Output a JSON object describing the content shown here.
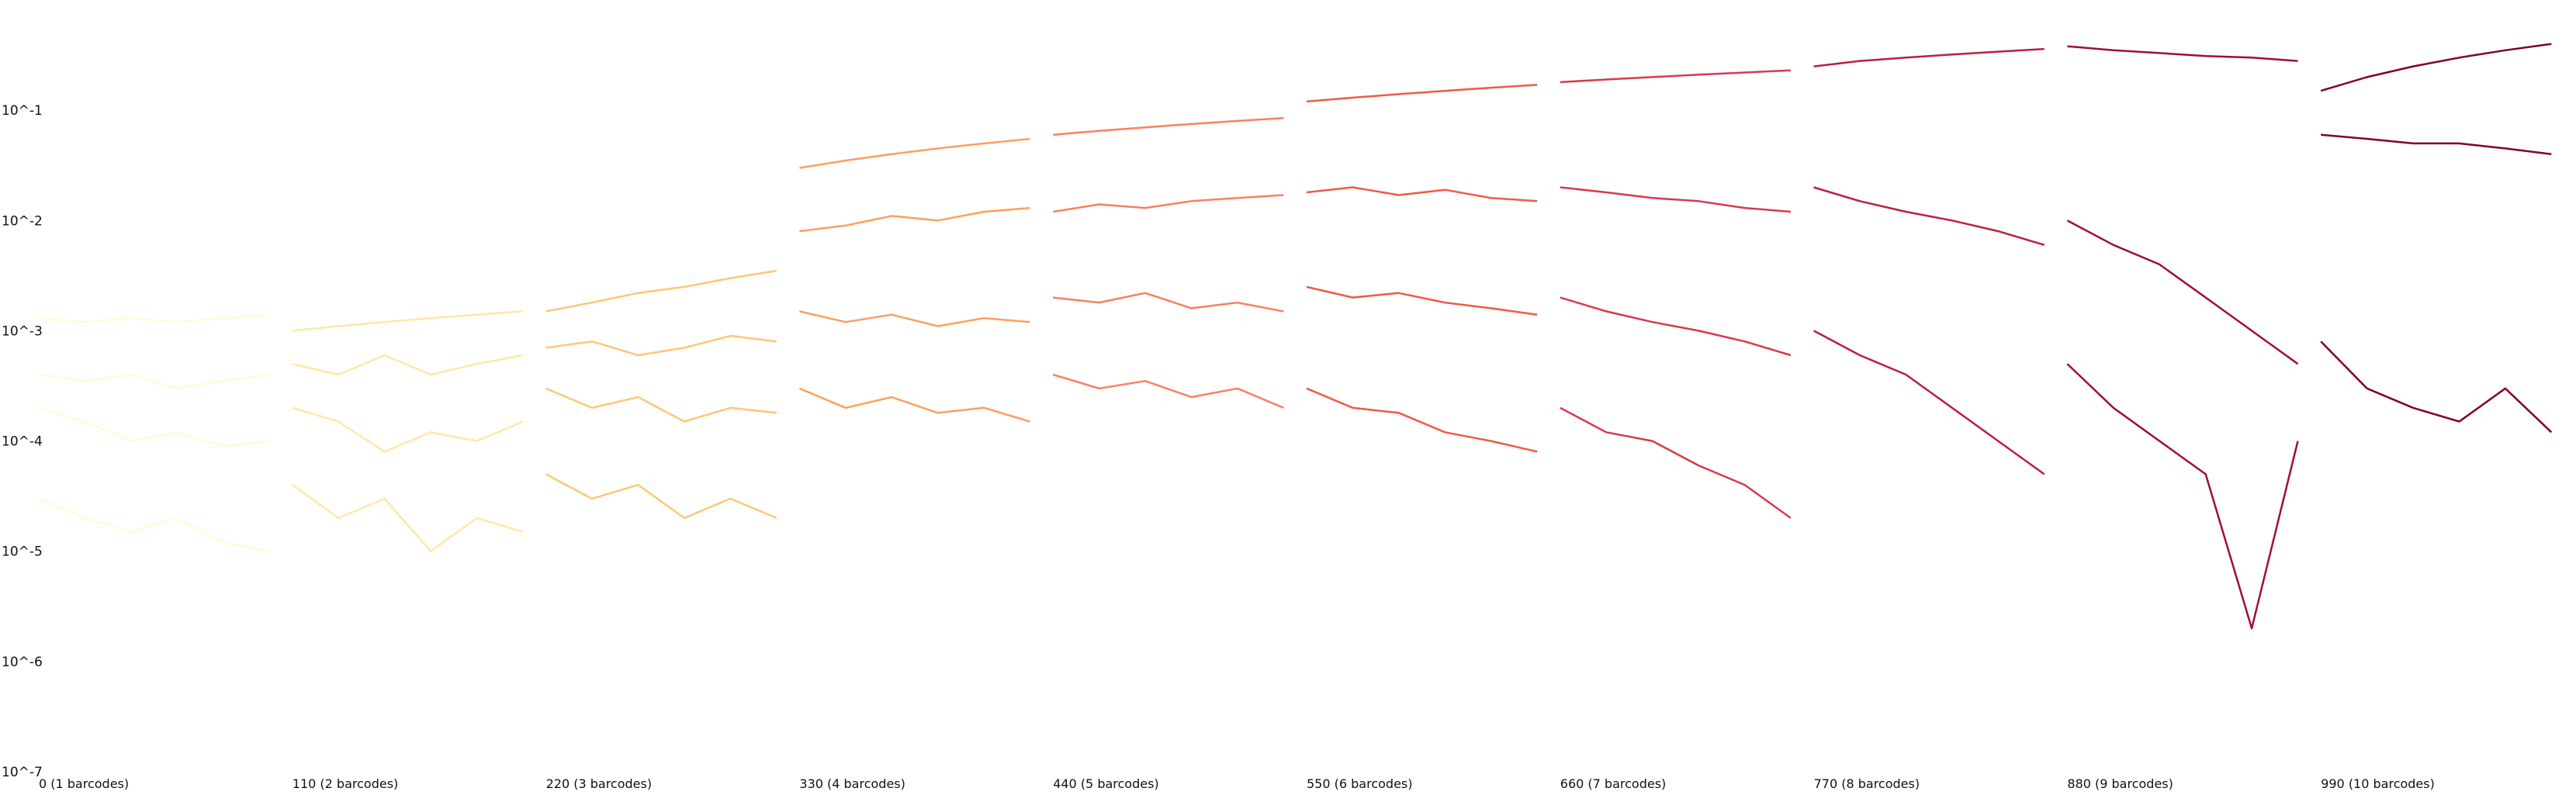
{
  "chart_data": {
    "type": "line",
    "title": "",
    "xlabel": "",
    "ylabel": "",
    "y_scale": "log",
    "ylim": [
      1e-07,
      1
    ],
    "xlim": [
      0,
      1100
    ],
    "grid": false,
    "legend": "none",
    "y_tick_labels": [
      "10^-1",
      "10^-2",
      "10^-3",
      "10^-4",
      "10^-5",
      "10^-6",
      "10^-7"
    ],
    "y_tick_values": [
      0.1,
      0.01,
      0.001,
      0.0001,
      1e-05,
      1e-06,
      1e-07
    ],
    "x_tick_labels": [
      "0 (1 barcodes)",
      "110 (2 barcodes)",
      "220 (3 barcodes)",
      "330 (4 barcodes)",
      "440 (5 barcodes)",
      "550 (6 barcodes)",
      "660 (7 barcodes)",
      "770 (8 barcodes)",
      "880 (9 barcodes)",
      "990 (10 barcodes)"
    ],
    "x_tick_values": [
      0,
      110,
      220,
      330,
      440,
      550,
      660,
      770,
      880,
      990
    ],
    "group_colors": [
      "#fffcd2",
      "#fee8a6",
      "#fec67a",
      "#fd9f5c",
      "#f98062",
      "#ee5a4a",
      "#d73a4d",
      "#bb1f3f",
      "#9e0f35",
      "#800026"
    ],
    "series": [
      {
        "group": 0,
        "x": [
          0,
          20,
          40,
          60,
          80,
          100
        ],
        "y": [
          0.0013,
          0.0012,
          0.0013,
          0.0012,
          0.0013,
          0.0014
        ]
      },
      {
        "group": 0,
        "x": [
          0,
          20,
          40,
          60,
          80,
          100
        ],
        "y": [
          0.0004,
          0.00035,
          0.0004,
          0.0003,
          0.00035,
          0.0004
        ]
      },
      {
        "group": 0,
        "x": [
          0,
          20,
          40,
          60,
          80,
          100
        ],
        "y": [
          0.0002,
          0.00015,
          0.0001,
          0.00012,
          9e-05,
          0.0001
        ]
      },
      {
        "group": 0,
        "x": [
          0,
          20,
          40,
          60,
          80,
          100
        ],
        "y": [
          3e-05,
          2e-05,
          1.5e-05,
          2e-05,
          1.2e-05,
          1e-05
        ]
      },
      {
        "group": 1,
        "x": [
          110,
          130,
          150,
          170,
          190,
          210
        ],
        "y": [
          0.001,
          0.0011,
          0.0012,
          0.0013,
          0.0014,
          0.0015
        ]
      },
      {
        "group": 1,
        "x": [
          110,
          130,
          150,
          170,
          190,
          210
        ],
        "y": [
          0.0005,
          0.0004,
          0.0006,
          0.0004,
          0.0005,
          0.0006
        ]
      },
      {
        "group": 1,
        "x": [
          110,
          130,
          150,
          170,
          190,
          210
        ],
        "y": [
          0.0002,
          0.00015,
          8e-05,
          0.00012,
          0.0001,
          0.00015
        ]
      },
      {
        "group": 1,
        "x": [
          110,
          130,
          150,
          170,
          190,
          210
        ],
        "y": [
          4e-05,
          2e-05,
          3e-05,
          1e-05,
          2e-05,
          1.5e-05
        ]
      },
      {
        "group": 2,
        "x": [
          220,
          240,
          260,
          280,
          300,
          320
        ],
        "y": [
          0.0015,
          0.0018,
          0.0022,
          0.0025,
          0.003,
          0.0035
        ]
      },
      {
        "group": 2,
        "x": [
          220,
          240,
          260,
          280,
          300,
          320
        ],
        "y": [
          0.0007,
          0.0008,
          0.0006,
          0.0007,
          0.0009,
          0.0008
        ]
      },
      {
        "group": 2,
        "x": [
          220,
          240,
          260,
          280,
          300,
          320
        ],
        "y": [
          0.0003,
          0.0002,
          0.00025,
          0.00015,
          0.0002,
          0.00018
        ]
      },
      {
        "group": 2,
        "x": [
          220,
          240,
          260,
          280,
          300,
          320
        ],
        "y": [
          5e-05,
          3e-05,
          4e-05,
          2e-05,
          3e-05,
          2e-05
        ]
      },
      {
        "group": 3,
        "x": [
          330,
          350,
          370,
          390,
          410,
          430
        ],
        "y": [
          0.03,
          0.035,
          0.04,
          0.045,
          0.05,
          0.055
        ]
      },
      {
        "group": 3,
        "x": [
          330,
          350,
          370,
          390,
          410,
          430
        ],
        "y": [
          0.008,
          0.009,
          0.011,
          0.01,
          0.012,
          0.013
        ]
      },
      {
        "group": 3,
        "x": [
          330,
          350,
          370,
          390,
          410,
          430
        ],
        "y": [
          0.0015,
          0.0012,
          0.0014,
          0.0011,
          0.0013,
          0.0012
        ]
      },
      {
        "group": 3,
        "x": [
          330,
          350,
          370,
          390,
          410,
          430
        ],
        "y": [
          0.0003,
          0.0002,
          0.00025,
          0.00018,
          0.0002,
          0.00015
        ]
      },
      {
        "group": 4,
        "x": [
          440,
          460,
          480,
          500,
          520,
          540
        ],
        "y": [
          0.06,
          0.065,
          0.07,
          0.075,
          0.08,
          0.085
        ]
      },
      {
        "group": 4,
        "x": [
          440,
          460,
          480,
          500,
          520,
          540
        ],
        "y": [
          0.012,
          0.014,
          0.013,
          0.015,
          0.016,
          0.017
        ]
      },
      {
        "group": 4,
        "x": [
          440,
          460,
          480,
          500,
          520,
          540
        ],
        "y": [
          0.002,
          0.0018,
          0.0022,
          0.0016,
          0.0018,
          0.0015
        ]
      },
      {
        "group": 4,
        "x": [
          440,
          460,
          480,
          500,
          520,
          540
        ],
        "y": [
          0.0004,
          0.0003,
          0.00035,
          0.00025,
          0.0003,
          0.0002
        ]
      },
      {
        "group": 5,
        "x": [
          550,
          570,
          590,
          610,
          630,
          650
        ],
        "y": [
          0.12,
          0.13,
          0.14,
          0.15,
          0.16,
          0.17
        ]
      },
      {
        "group": 5,
        "x": [
          550,
          570,
          590,
          610,
          630,
          650
        ],
        "y": [
          0.018,
          0.02,
          0.017,
          0.019,
          0.016,
          0.015
        ]
      },
      {
        "group": 5,
        "x": [
          550,
          570,
          590,
          610,
          630,
          650
        ],
        "y": [
          0.0025,
          0.002,
          0.0022,
          0.0018,
          0.0016,
          0.0014
        ]
      },
      {
        "group": 5,
        "x": [
          550,
          570,
          590,
          610,
          630,
          650
        ],
        "y": [
          0.0003,
          0.0002,
          0.00018,
          0.00012,
          0.0001,
          8e-05
        ]
      },
      {
        "group": 6,
        "x": [
          660,
          680,
          700,
          720,
          740,
          760
        ],
        "y": [
          0.18,
          0.19,
          0.2,
          0.21,
          0.22,
          0.23
        ]
      },
      {
        "group": 6,
        "x": [
          660,
          680,
          700,
          720,
          740,
          760
        ],
        "y": [
          0.02,
          0.018,
          0.016,
          0.015,
          0.013,
          0.012
        ]
      },
      {
        "group": 6,
        "x": [
          660,
          680,
          700,
          720,
          740,
          760
        ],
        "y": [
          0.002,
          0.0015,
          0.0012,
          0.001,
          0.0008,
          0.0006
        ]
      },
      {
        "group": 6,
        "x": [
          660,
          680,
          700,
          720,
          740,
          760
        ],
        "y": [
          0.0002,
          0.00012,
          0.0001,
          6e-05,
          4e-05,
          2e-05
        ]
      },
      {
        "group": 7,
        "x": [
          770,
          790,
          810,
          830,
          850,
          870
        ],
        "y": [
          0.25,
          0.28,
          0.3,
          0.32,
          0.34,
          0.36
        ]
      },
      {
        "group": 7,
        "x": [
          770,
          790,
          810,
          830,
          850,
          870
        ],
        "y": [
          0.02,
          0.015,
          0.012,
          0.01,
          0.008,
          0.006
        ]
      },
      {
        "group": 7,
        "x": [
          770,
          790,
          810,
          830,
          850,
          870
        ],
        "y": [
          0.001,
          0.0006,
          0.0004,
          0.0002,
          0.0001,
          5e-05
        ]
      },
      {
        "group": 8,
        "x": [
          880,
          900,
          920,
          940,
          960,
          980
        ],
        "y": [
          0.38,
          0.35,
          0.33,
          0.31,
          0.3,
          0.28
        ]
      },
      {
        "group": 8,
        "x": [
          880,
          900,
          920,
          940,
          960,
          980
        ],
        "y": [
          0.01,
          0.006,
          0.004,
          0.002,
          0.001,
          0.0005
        ]
      },
      {
        "group": 8,
        "x": [
          880,
          900,
          920,
          940,
          960,
          980
        ],
        "y": [
          0.0005,
          0.0002,
          0.0001,
          5e-05,
          2e-06,
          0.0001
        ]
      },
      {
        "group": 9,
        "x": [
          990,
          1010,
          1030,
          1050,
          1070,
          1090
        ],
        "y": [
          0.15,
          0.2,
          0.25,
          0.3,
          0.35,
          0.4
        ]
      },
      {
        "group": 9,
        "x": [
          990,
          1010,
          1030,
          1050,
          1070,
          1090
        ],
        "y": [
          0.06,
          0.055,
          0.05,
          0.05,
          0.045,
          0.04
        ]
      },
      {
        "group": 9,
        "x": [
          990,
          1010,
          1030,
          1050,
          1070,
          1090
        ],
        "y": [
          0.0008,
          0.0003,
          0.0002,
          0.00015,
          0.0003,
          0.00012
        ]
      }
    ]
  }
}
